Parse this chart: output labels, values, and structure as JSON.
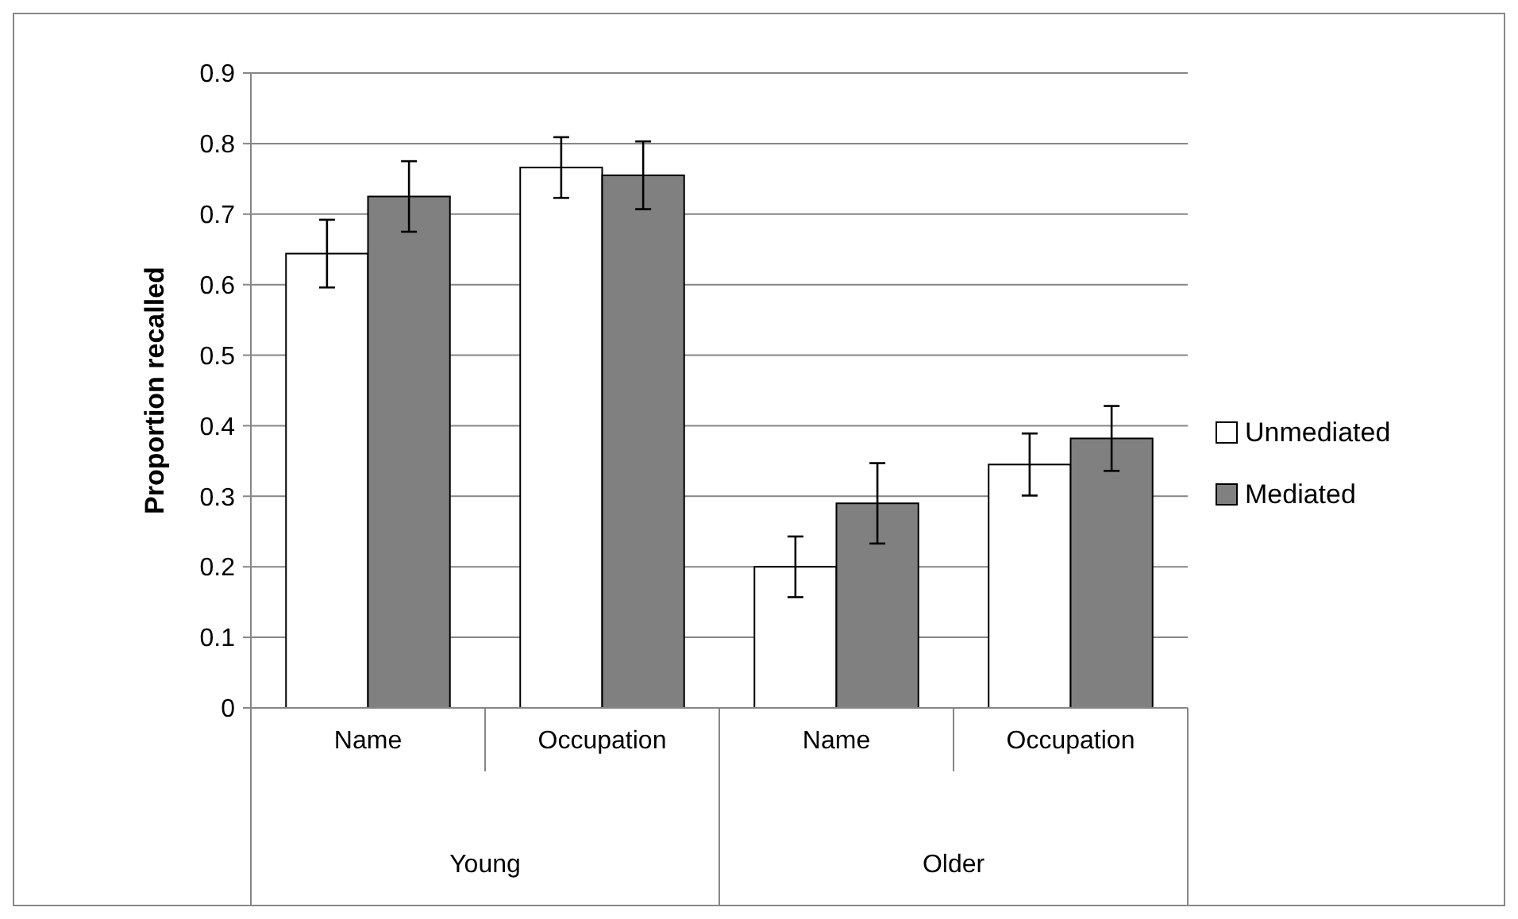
{
  "chart_data": {
    "type": "bar",
    "ylabel": "Proportion recalled",
    "categories": [
      "Name",
      "Occupation",
      "Name",
      "Occupation"
    ],
    "annotations": [
      "Young",
      "Older"
    ],
    "series": [
      {
        "name": "Unmediated",
        "color": "#ffffff",
        "values": [
          0.644,
          0.766,
          0.2,
          0.345
        ],
        "errors": [
          0.048,
          0.043,
          0.043,
          0.044
        ]
      },
      {
        "name": "Mediated",
        "color": "#808080",
        "values": [
          0.725,
          0.755,
          0.29,
          0.382
        ],
        "errors": [
          0.05,
          0.048,
          0.057,
          0.046
        ]
      }
    ],
    "ylim": [
      0,
      0.9
    ],
    "yticks": [
      0,
      0.1,
      0.2,
      0.3,
      0.4,
      0.5,
      0.6,
      0.7,
      0.8,
      0.9
    ],
    "grid": "y",
    "legend": "right"
  }
}
